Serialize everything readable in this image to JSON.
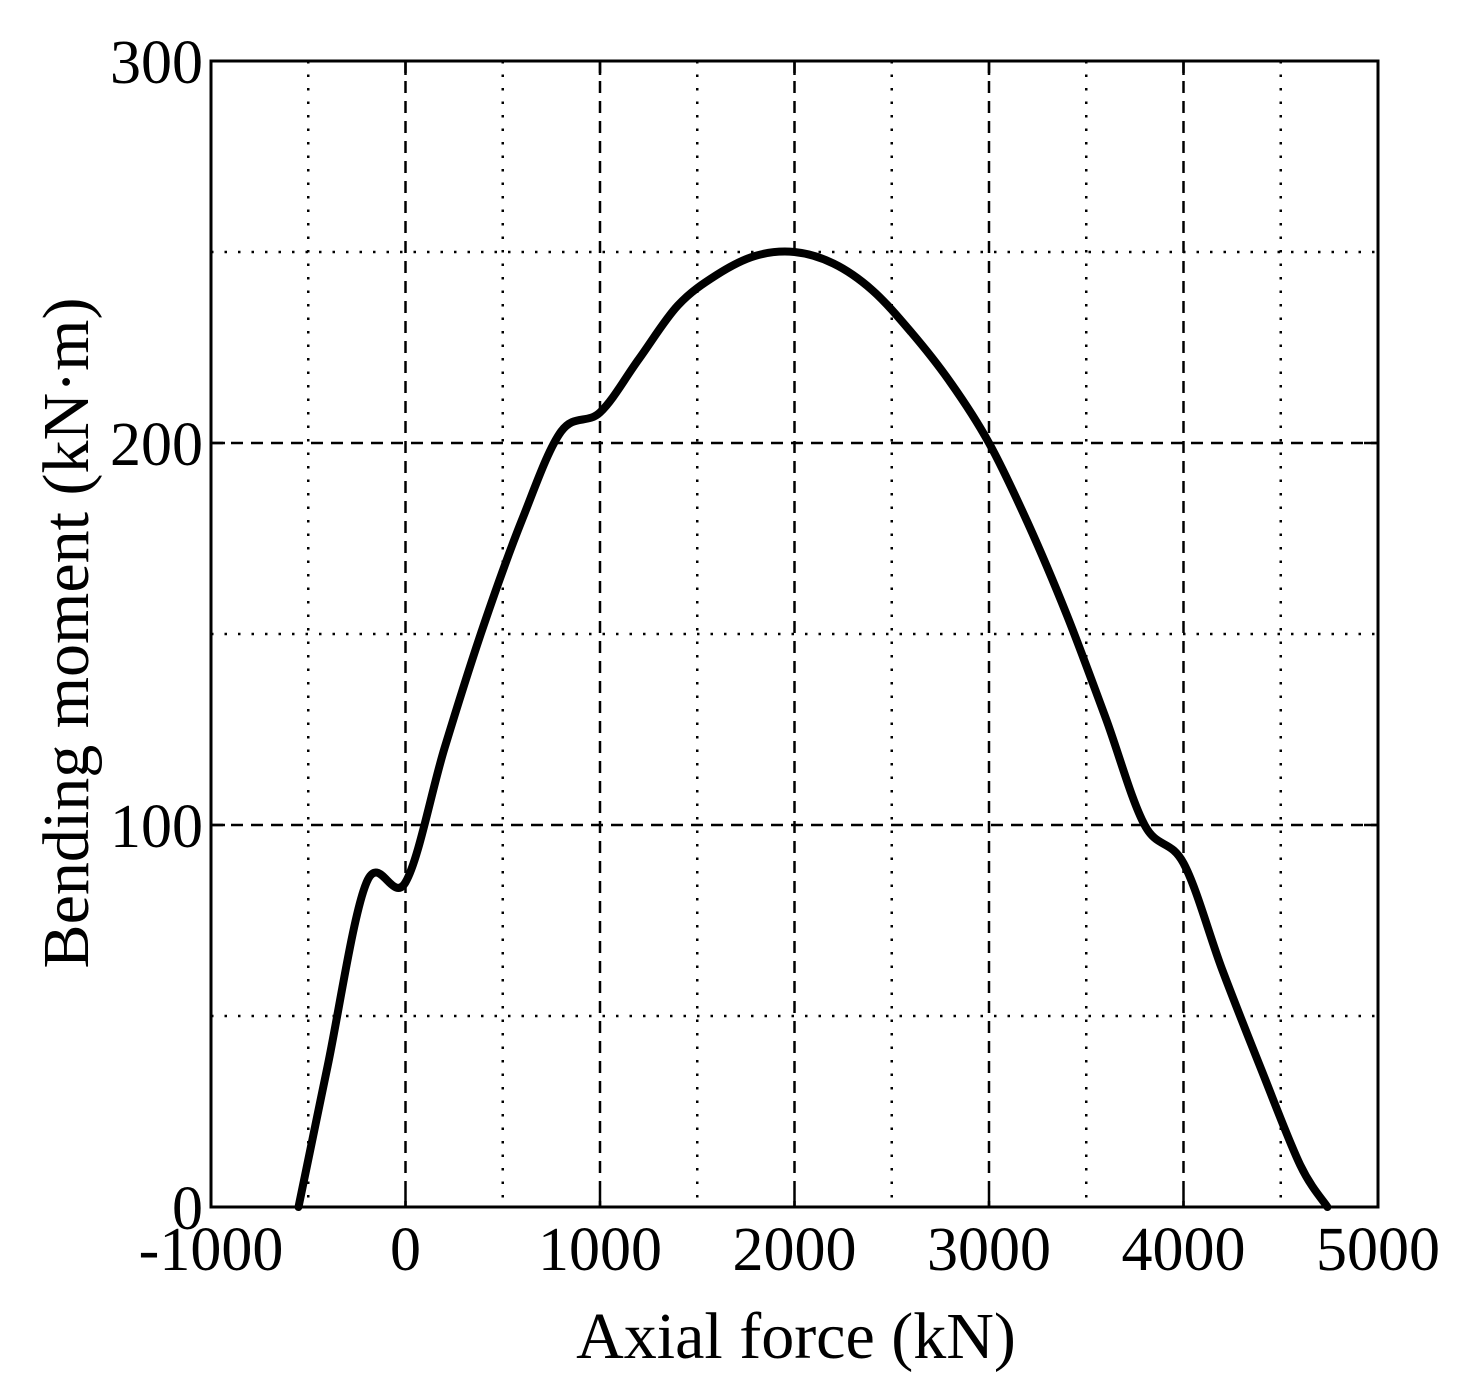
{
  "chart_data": {
    "type": "line",
    "xlabel": "Axial force (kN)",
    "ylabel": "Bending moment (kN·m)",
    "xlim": [
      -1000,
      5000
    ],
    "ylim": [
      0,
      300
    ],
    "x_ticks": [
      "-1000",
      "0",
      "1000",
      "2000",
      "3000",
      "4000",
      "5000"
    ],
    "y_ticks": [
      "0",
      "100",
      "200",
      "300"
    ],
    "grid": "major dashed, minor dotted",
    "line_color": "#000000",
    "series": [
      {
        "x": [
          -550,
          -400,
          -200,
          0,
          200,
          400,
          600,
          800,
          1000,
          1200,
          1400,
          1600,
          1800,
          2000,
          2200,
          2400,
          2600,
          2800,
          3000,
          3200,
          3400,
          3600,
          3800,
          4000,
          4200,
          4400,
          4600,
          4740
        ],
        "y": [
          0,
          37,
          85,
          85,
          120,
          152,
          180,
          203,
          208,
          222,
          236,
          244,
          249,
          250,
          247,
          240,
          229,
          216,
          200,
          179,
          155,
          128,
          100,
          90,
          62,
          36,
          11,
          0
        ]
      }
    ]
  }
}
